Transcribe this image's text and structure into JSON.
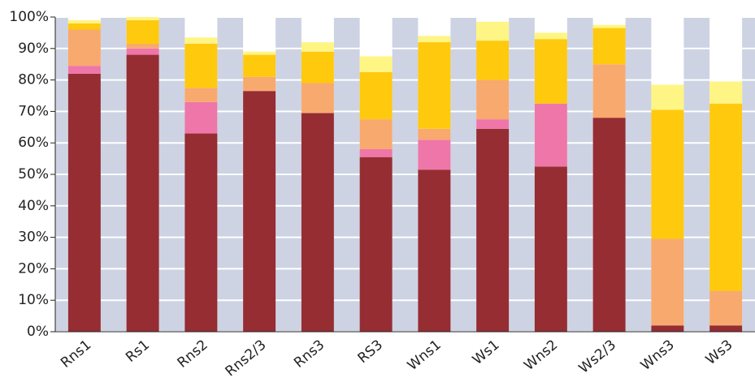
{
  "chart_data": {
    "type": "stacked-bar",
    "categories": [
      "Rns1",
      "Rs1",
      "Rns2",
      "Rns2/3",
      "Rns3",
      "RS3",
      "Wns1",
      "Ws1",
      "Wns2",
      "Ws2/3",
      "Wns3",
      "Ws3"
    ],
    "series": [
      {
        "color": "#952d33",
        "values": [
          82,
          88,
          63,
          76.5,
          69.5,
          55.5,
          51.5,
          64.5,
          52.5,
          68,
          2,
          2
        ]
      },
      {
        "color": "#ef76a8",
        "values": [
          2.5,
          2,
          10,
          0,
          0,
          2.5,
          9.5,
          3,
          20,
          0,
          0,
          0
        ]
      },
      {
        "color": "#f8a96d",
        "values": [
          11.5,
          1.5,
          4.5,
          4.5,
          9.5,
          9.5,
          3.5,
          12.5,
          0,
          17,
          27.5,
          11
        ]
      },
      {
        "color": "#ffc90d",
        "values": [
          2,
          7.5,
          14,
          7,
          10,
          15,
          27.5,
          12.5,
          20.5,
          11.5,
          41,
          59.5
        ]
      },
      {
        "color": "#fff584",
        "values": [
          1,
          1,
          2,
          1,
          3,
          5,
          2,
          6,
          2,
          1,
          8,
          7
        ]
      }
    ],
    "ylim": [
      0,
      100
    ],
    "yticks": [
      {
        "value": 0,
        "label": "0%"
      },
      {
        "value": 10,
        "label": "10%"
      },
      {
        "value": 20,
        "label": "20%"
      },
      {
        "value": 30,
        "label": "30%"
      },
      {
        "value": 40,
        "label": "40%"
      },
      {
        "value": 50,
        "label": "50%"
      },
      {
        "value": 60,
        "label": "60%"
      },
      {
        "value": 70,
        "label": "70%"
      },
      {
        "value": 80,
        "label": "80%"
      },
      {
        "value": 90,
        "label": "90%"
      },
      {
        "value": 100,
        "label": "100%"
      }
    ],
    "grid": true
  }
}
